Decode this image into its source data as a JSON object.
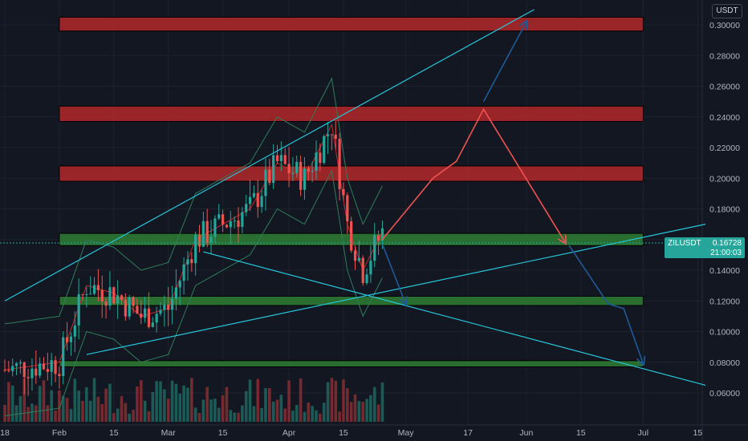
{
  "chart_data": {
    "type": "candlestick",
    "quote_currency": "USDT",
    "symbol": "ZILUSDT",
    "last_price": "0.16728",
    "countdown": "21:00:03",
    "y_ticks": [
      "0.30000",
      "0.28000",
      "0.26000",
      "0.24000",
      "0.22000",
      "0.20000",
      "0.18000",
      "0.16000",
      "0.14000",
      "0.12000",
      "0.10000",
      "0.08000",
      "0.06000"
    ],
    "y_tick_values": [
      0.3,
      0.28,
      0.26,
      0.24,
      0.22,
      0.2,
      0.18,
      0.16,
      0.14,
      0.12,
      0.1,
      0.08,
      0.06
    ],
    "x_ticks": [
      "18",
      "Feb",
      "15",
      "Mar",
      "15",
      "Apr",
      "15",
      "May",
      "17",
      "Jun",
      "15",
      "Jul",
      "15"
    ],
    "x_tick_dates": [
      "2021-01-18",
      "2021-02-01",
      "2021-02-15",
      "2021-03-01",
      "2021-03-15",
      "2021-04-01",
      "2021-04-15",
      "2021-05-01",
      "2021-05-17",
      "2021-06-01",
      "2021-06-15",
      "2021-07-01",
      "2021-07-15"
    ],
    "resistance_zones": [
      [
        0.296,
        0.305
      ],
      [
        0.237,
        0.247
      ],
      [
        0.198,
        0.208
      ]
    ],
    "support_zones": [
      [
        0.156,
        0.164
      ],
      [
        0.117,
        0.123
      ],
      [
        0.077,
        0.081
      ]
    ],
    "trendlines": [
      {
        "from": [
          "2021-01-18",
          0.12
        ],
        "to": [
          "2021-06-03",
          0.31
        ]
      },
      {
        "from": [
          "2021-02-08",
          0.085
        ],
        "to": [
          "2021-07-17",
          0.17
        ]
      },
      {
        "from": [
          "2021-03-10",
          0.152
        ],
        "to": [
          "2021-07-17",
          0.065
        ]
      }
    ],
    "projection_red": [
      [
        "2021-04-25",
        0.16
      ],
      [
        "2021-05-08",
        0.2
      ],
      [
        "2021-05-14",
        0.211
      ],
      [
        "2021-05-21",
        0.245
      ],
      [
        "2021-06-11",
        0.158
      ]
    ],
    "projection_blue_up": [
      [
        "2021-05-21",
        0.25
      ],
      [
        "2021-06-01",
        0.302
      ]
    ],
    "projection_blue_down_1": [
      [
        "2021-04-25",
        0.157
      ],
      [
        "2021-05-01",
        0.118
      ]
    ],
    "projection_blue_down_2": [
      [
        "2021-06-12",
        0.156
      ],
      [
        "2021-06-22",
        0.118
      ],
      [
        "2021-06-26",
        0.115
      ],
      [
        "2021-07-01",
        0.079
      ]
    ]
  }
}
